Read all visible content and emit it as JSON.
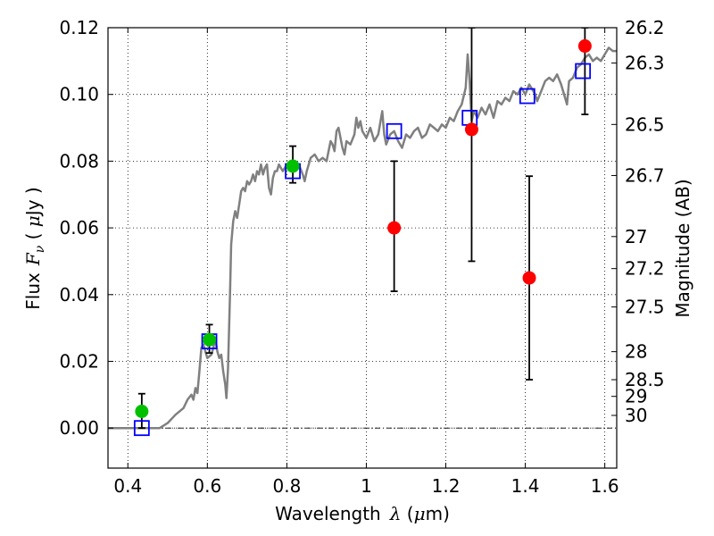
{
  "chart_data": {
    "type": "scatter",
    "xlabel_text": "Wavelength",
    "xlabel_symbol": "λ",
    "xlabel_unit_open": " (",
    "xlabel_unit_mu": "μ",
    "xlabel_unit_rest": "m)",
    "ylabel_text": "Flux",
    "ylabel_symbol": "F",
    "ylabel_subscript": "ν",
    "ylabel_unit_open": " ( ",
    "ylabel_unit_mu": "μ",
    "ylabel_unit_rest": "Jy )",
    "y2label": "Magnitude (AB)",
    "xlim": [
      0.35,
      1.63
    ],
    "ylim": [
      -0.012,
      0.12
    ],
    "x_ticks": [
      0.4,
      0.6,
      0.8,
      1.0,
      1.2,
      1.4,
      1.6
    ],
    "x_tick_labels": [
      "0.4",
      "0.6",
      "0.8",
      "1",
      "1.2",
      "1.4",
      "1.6"
    ],
    "y_ticks": [
      0.0,
      0.02,
      0.04,
      0.06,
      0.08,
      0.1,
      0.12
    ],
    "y_tick_labels": [
      "0.00",
      "0.02",
      "0.04",
      "0.06",
      "0.08",
      "0.10",
      "0.12"
    ],
    "y2_ticks": [
      {
        "label": "26.2",
        "flux": 0.12
      },
      {
        "label": "26.3",
        "flux": 0.1094
      },
      {
        "label": "26.5",
        "flux": 0.091
      },
      {
        "label": "26.7",
        "flux": 0.0757
      },
      {
        "label": "27",
        "flux": 0.0574
      },
      {
        "label": "27.2",
        "flux": 0.0478
      },
      {
        "label": "27.5",
        "flux": 0.0363
      },
      {
        "label": "28",
        "flux": 0.0229
      },
      {
        "label": "28.5",
        "flux": 0.0145
      },
      {
        "label": "29",
        "flux": 0.0095
      },
      {
        "label": "30",
        "flux": 0.0038
      }
    ],
    "grid": true,
    "zero_line": true,
    "colors": {
      "spectrum": "#808080",
      "model_squares": "#0000ff",
      "detections": "#00c000",
      "upper_points": "#ff0000",
      "error_bars": "#000000"
    },
    "series": [
      {
        "kind": "line",
        "points": [
          [
            0.35,
            0.0
          ],
          [
            0.48,
            0.0
          ],
          [
            0.5,
            0.0015
          ],
          [
            0.52,
            0.004
          ],
          [
            0.54,
            0.006
          ],
          [
            0.55,
            0.0085
          ],
          [
            0.56,
            0.01
          ],
          [
            0.565,
            0.0085
          ],
          [
            0.57,
            0.012
          ],
          [
            0.575,
            0.0105
          ],
          [
            0.58,
            0.017
          ],
          [
            0.585,
            0.024
          ],
          [
            0.59,
            0.025
          ],
          [
            0.595,
            0.023
          ],
          [
            0.6,
            0.021
          ],
          [
            0.61,
            0.022
          ],
          [
            0.615,
            0.024
          ],
          [
            0.62,
            0.027
          ],
          [
            0.625,
            0.023
          ],
          [
            0.63,
            0.021
          ],
          [
            0.635,
            0.022
          ],
          [
            0.64,
            0.017
          ],
          [
            0.645,
            0.013
          ],
          [
            0.648,
            0.009
          ],
          [
            0.652,
            0.018
          ],
          [
            0.657,
            0.04
          ],
          [
            0.66,
            0.055
          ],
          [
            0.665,
            0.062
          ],
          [
            0.67,
            0.065
          ],
          [
            0.675,
            0.063
          ],
          [
            0.68,
            0.067
          ],
          [
            0.685,
            0.071
          ],
          [
            0.69,
            0.072
          ],
          [
            0.695,
            0.071
          ],
          [
            0.7,
            0.074
          ],
          [
            0.705,
            0.073
          ],
          [
            0.71,
            0.074
          ],
          [
            0.715,
            0.076
          ],
          [
            0.72,
            0.074
          ],
          [
            0.725,
            0.077
          ],
          [
            0.73,
            0.076
          ],
          [
            0.735,
            0.079
          ],
          [
            0.74,
            0.076
          ],
          [
            0.745,
            0.078
          ],
          [
            0.75,
            0.079
          ],
          [
            0.755,
            0.072
          ],
          [
            0.76,
            0.07
          ],
          [
            0.765,
            0.075
          ],
          [
            0.77,
            0.077
          ],
          [
            0.775,
            0.077
          ],
          [
            0.78,
            0.079
          ],
          [
            0.79,
            0.077
          ],
          [
            0.8,
            0.079
          ],
          [
            0.81,
            0.078
          ],
          [
            0.82,
            0.077
          ],
          [
            0.83,
            0.079
          ],
          [
            0.84,
            0.076
          ],
          [
            0.845,
            0.074
          ],
          [
            0.85,
            0.077
          ],
          [
            0.86,
            0.081
          ],
          [
            0.87,
            0.082
          ],
          [
            0.88,
            0.08
          ],
          [
            0.89,
            0.081
          ],
          [
            0.9,
            0.08
          ],
          [
            0.91,
            0.086
          ],
          [
            0.915,
            0.085
          ],
          [
            0.92,
            0.083
          ],
          [
            0.925,
            0.089
          ],
          [
            0.93,
            0.09
          ],
          [
            0.94,
            0.084
          ],
          [
            0.945,
            0.082
          ],
          [
            0.95,
            0.086
          ],
          [
            0.96,
            0.085
          ],
          [
            0.97,
            0.088
          ],
          [
            0.975,
            0.093
          ],
          [
            0.98,
            0.09
          ],
          [
            0.985,
            0.092
          ],
          [
            0.99,
            0.089
          ],
          [
            1.0,
            0.087
          ],
          [
            1.01,
            0.09
          ],
          [
            1.02,
            0.086
          ],
          [
            1.03,
            0.088
          ],
          [
            1.04,
            0.095
          ],
          [
            1.045,
            0.088
          ],
          [
            1.05,
            0.085
          ],
          [
            1.06,
            0.088
          ],
          [
            1.07,
            0.089
          ],
          [
            1.08,
            0.086
          ],
          [
            1.09,
            0.084
          ],
          [
            1.1,
            0.088
          ],
          [
            1.11,
            0.087
          ],
          [
            1.12,
            0.089
          ],
          [
            1.13,
            0.09
          ],
          [
            1.14,
            0.087
          ],
          [
            1.15,
            0.088
          ],
          [
            1.16,
            0.091
          ],
          [
            1.17,
            0.09
          ],
          [
            1.18,
            0.089
          ],
          [
            1.19,
            0.091
          ],
          [
            1.2,
            0.09
          ],
          [
            1.21,
            0.093
          ],
          [
            1.22,
            0.092
          ],
          [
            1.23,
            0.095
          ],
          [
            1.24,
            0.097
          ],
          [
            1.25,
            0.102
          ],
          [
            1.255,
            0.112
          ],
          [
            1.26,
            0.104
          ],
          [
            1.265,
            0.092
          ],
          [
            1.27,
            0.095
          ],
          [
            1.28,
            0.093
          ],
          [
            1.29,
            0.096
          ],
          [
            1.3,
            0.094
          ],
          [
            1.31,
            0.097
          ],
          [
            1.32,
            0.093
          ],
          [
            1.33,
            0.098
          ],
          [
            1.34,
            0.097
          ],
          [
            1.35,
            0.099
          ],
          [
            1.36,
            0.098
          ],
          [
            1.37,
            0.101
          ],
          [
            1.38,
            0.1
          ],
          [
            1.39,
            0.102
          ],
          [
            1.4,
            0.1
          ],
          [
            1.41,
            0.103
          ],
          [
            1.42,
            0.101
          ],
          [
            1.425,
            0.1
          ],
          [
            1.43,
            0.098
          ],
          [
            1.44,
            0.101
          ],
          [
            1.45,
            0.104
          ],
          [
            1.46,
            0.105
          ],
          [
            1.47,
            0.104
          ],
          [
            1.48,
            0.106
          ],
          [
            1.49,
            0.103
          ],
          [
            1.5,
            0.099
          ],
          [
            1.505,
            0.097
          ],
          [
            1.51,
            0.104
          ],
          [
            1.52,
            0.105
          ],
          [
            1.53,
            0.108
          ],
          [
            1.54,
            0.109
          ],
          [
            1.55,
            0.111
          ],
          [
            1.56,
            0.112
          ],
          [
            1.57,
            0.11
          ],
          [
            1.58,
            0.111
          ],
          [
            1.59,
            0.11
          ],
          [
            1.6,
            0.112
          ],
          [
            1.61,
            0.114
          ],
          [
            1.62,
            0.113
          ],
          [
            1.63,
            0.113
          ]
        ]
      },
      {
        "kind": "model_squares",
        "points": [
          [
            0.435,
            0.0
          ],
          [
            0.605,
            0.026
          ],
          [
            0.815,
            0.077
          ],
          [
            1.07,
            0.089
          ],
          [
            1.26,
            0.093
          ],
          [
            1.405,
            0.0995
          ],
          [
            1.545,
            0.107
          ]
        ]
      },
      {
        "kind": "detections",
        "points": [
          {
            "x": 0.435,
            "y": 0.005,
            "lo": 0.0,
            "hi": 0.0103
          },
          {
            "x": 0.605,
            "y": 0.0265,
            "lo": 0.0225,
            "hi": 0.031
          },
          {
            "x": 0.815,
            "y": 0.0785,
            "lo": 0.0735,
            "hi": 0.0845
          }
        ]
      },
      {
        "kind": "upper_points",
        "points": [
          {
            "x": 1.07,
            "y": 0.06,
            "lo": 0.041,
            "hi": 0.08
          },
          {
            "x": 1.265,
            "y": 0.0895,
            "lo": 0.05,
            "hi": 0.12
          },
          {
            "x": 1.41,
            "y": 0.045,
            "lo": 0.0145,
            "hi": 0.0755
          },
          {
            "x": 1.55,
            "y": 0.1145,
            "lo": 0.094,
            "hi": 0.12
          }
        ]
      }
    ]
  }
}
